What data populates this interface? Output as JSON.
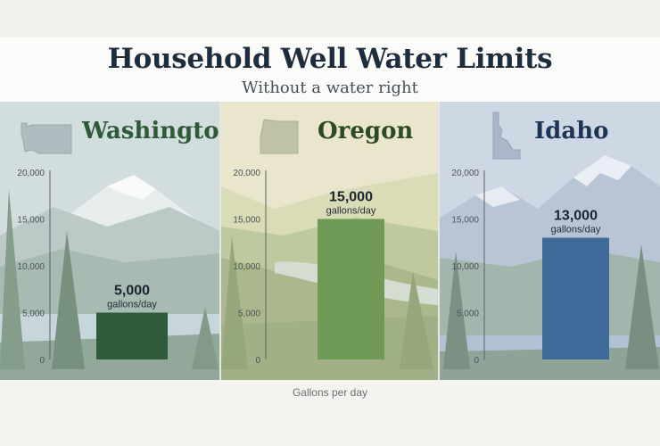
{
  "title": "Household Well Water Limits",
  "subtitle": "Without a water right",
  "chart_data": [
    {
      "type": "bar",
      "title": "Washington",
      "categories": [
        "Washington"
      ],
      "values": [
        5000
      ],
      "value_label": "5,000",
      "unit_label": "gallons/day",
      "ylim": [
        0,
        20000
      ],
      "yticks": [
        "0",
        "5,000",
        "10,000",
        "15,000",
        "20,000"
      ],
      "xlabel": "Gallons per day",
      "ylabel": "",
      "color": "#2f5a3a",
      "icon": "washington-state-outline-icon"
    },
    {
      "type": "bar",
      "title": "Oregon",
      "categories": [
        "Oregon"
      ],
      "values": [
        15000
      ],
      "value_label": "15,000",
      "unit_label": "gallons/day",
      "ylim": [
        0,
        20000
      ],
      "yticks": [
        "0",
        "5,000",
        "10,000",
        "15,000",
        "20,000"
      ],
      "xlabel": "Gallons per day",
      "ylabel": "",
      "color": "#6f9a55",
      "icon": "oregon-state-outline-icon"
    },
    {
      "type": "bar",
      "title": "Idaho",
      "categories": [
        "Idaho"
      ],
      "values": [
        13000
      ],
      "value_label": "13,000",
      "unit_label": "gallons/day",
      "ylim": [
        0,
        20000
      ],
      "yticks": [
        "0",
        "5,000",
        "10,000",
        "15,000",
        "20,000"
      ],
      "xlabel": "Gallons per day",
      "ylabel": "",
      "color": "#3f6a9a",
      "icon": "idaho-state-outline-icon"
    }
  ],
  "colors": {
    "title": "#1e2d3e",
    "washington_text": "#2f5a3a",
    "oregon_text": "#2e4a22",
    "idaho_text": "#1d3554"
  }
}
